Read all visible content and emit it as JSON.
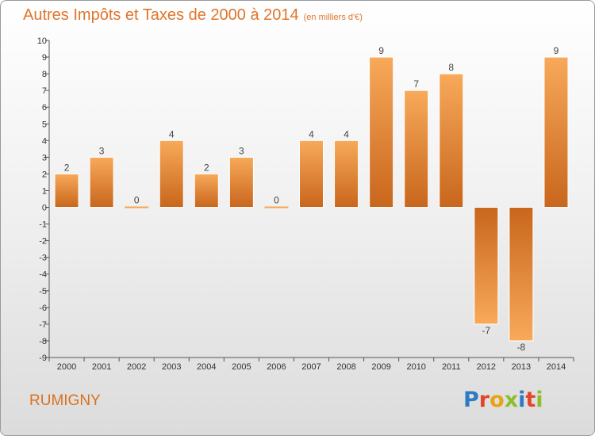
{
  "header": {
    "title": "Autres Impôts et Taxes de 2000 à 2014",
    "subtitle": "(en milliers d'€)"
  },
  "footer": {
    "commune": "RUMIGNY",
    "logo_text": "Proxiti"
  },
  "colors": {
    "accent": "#e0752b",
    "bar_light": "#f6a455",
    "bar_dark": "#c8661c",
    "axis": "#555555",
    "logo_letters": [
      "#2e7bc4",
      "#e1462c",
      "#e8a312",
      "#8dbe2b",
      "#2e7bc4",
      "#e1462c",
      "#8dbe2b"
    ]
  },
  "chart_data": {
    "type": "bar",
    "categories": [
      "2000",
      "2001",
      "2002",
      "2003",
      "2004",
      "2005",
      "2006",
      "2007",
      "2008",
      "2009",
      "2010",
      "2011",
      "2012",
      "2013",
      "2014"
    ],
    "values": [
      2,
      3,
      0,
      4,
      2,
      3,
      0,
      4,
      4,
      9,
      7,
      8,
      -7,
      -8,
      9
    ],
    "data_labels": [
      "2",
      "3",
      "0",
      "4",
      "2",
      "3",
      "0",
      "4",
      "4",
      "9",
      "7",
      "8",
      "-7",
      "-8",
      "9"
    ],
    "ylim": [
      -9,
      10
    ],
    "y_ticks": [
      10,
      9,
      8,
      7,
      6,
      5,
      4,
      3,
      2,
      1,
      0,
      -1,
      -2,
      -3,
      -4,
      -5,
      -6,
      -7,
      -8,
      -9
    ],
    "xlabel": "",
    "ylabel": "",
    "grid": false
  }
}
